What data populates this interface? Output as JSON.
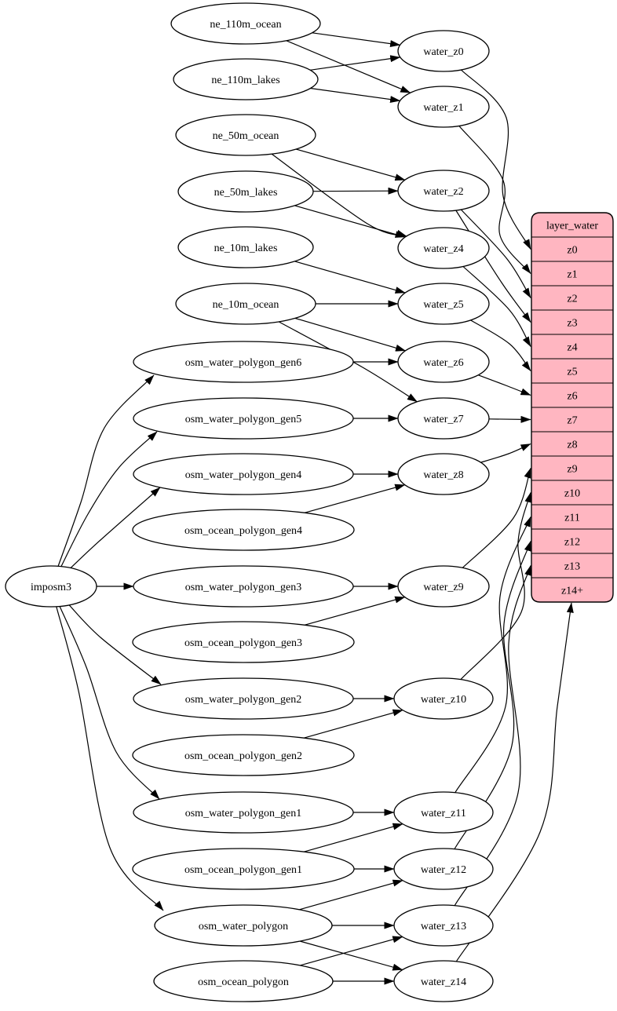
{
  "diagram": {
    "background": "#ffffff",
    "edge_color": "#000000",
    "node_fill": "#ffffff",
    "node_stroke": "#000000"
  },
  "nodes": {
    "imposm3": {
      "label": "imposm3"
    },
    "ne_110m_ocean": {
      "label": "ne_110m_ocean"
    },
    "ne_110m_lakes": {
      "label": "ne_110m_lakes"
    },
    "ne_50m_ocean": {
      "label": "ne_50m_ocean"
    },
    "ne_50m_lakes": {
      "label": "ne_50m_lakes"
    },
    "ne_10m_lakes": {
      "label": "ne_10m_lakes"
    },
    "ne_10m_ocean": {
      "label": "ne_10m_ocean"
    },
    "osm_water_polygon_gen6": {
      "label": "osm_water_polygon_gen6"
    },
    "osm_water_polygon_gen5": {
      "label": "osm_water_polygon_gen5"
    },
    "osm_water_polygon_gen4": {
      "label": "osm_water_polygon_gen4"
    },
    "osm_ocean_polygon_gen4": {
      "label": "osm_ocean_polygon_gen4"
    },
    "osm_water_polygon_gen3": {
      "label": "osm_water_polygon_gen3"
    },
    "osm_ocean_polygon_gen3": {
      "label": "osm_ocean_polygon_gen3"
    },
    "osm_water_polygon_gen2": {
      "label": "osm_water_polygon_gen2"
    },
    "osm_ocean_polygon_gen2": {
      "label": "osm_ocean_polygon_gen2"
    },
    "osm_water_polygon_gen1": {
      "label": "osm_water_polygon_gen1"
    },
    "osm_ocean_polygon_gen1": {
      "label": "osm_ocean_polygon_gen1"
    },
    "osm_water_polygon": {
      "label": "osm_water_polygon"
    },
    "osm_ocean_polygon": {
      "label": "osm_ocean_polygon"
    },
    "water_z0": {
      "label": "water_z0"
    },
    "water_z1": {
      "label": "water_z1"
    },
    "water_z2": {
      "label": "water_z2"
    },
    "water_z4": {
      "label": "water_z4"
    },
    "water_z5": {
      "label": "water_z5"
    },
    "water_z6": {
      "label": "water_z6"
    },
    "water_z7": {
      "label": "water_z7"
    },
    "water_z8": {
      "label": "water_z8"
    },
    "water_z9": {
      "label": "water_z9"
    },
    "water_z10": {
      "label": "water_z10"
    },
    "water_z11": {
      "label": "water_z11"
    },
    "water_z12": {
      "label": "water_z12"
    },
    "water_z13": {
      "label": "water_z13"
    },
    "water_z14": {
      "label": "water_z14"
    }
  },
  "table": {
    "title": "layer_water",
    "rows": [
      "z0",
      "z1",
      "z2",
      "z3",
      "z4",
      "z5",
      "z6",
      "z7",
      "z8",
      "z9",
      "z10",
      "z11",
      "z12",
      "z13",
      "z14+"
    ],
    "fill": "#ffb6c1",
    "stroke": "#000000"
  },
  "edges": [
    {
      "from": "ne_110m_ocean",
      "to": "water_z0"
    },
    {
      "from": "ne_110m_ocean",
      "to": "water_z1"
    },
    {
      "from": "ne_110m_lakes",
      "to": "water_z0"
    },
    {
      "from": "ne_110m_lakes",
      "to": "water_z1"
    },
    {
      "from": "ne_50m_ocean",
      "to": "water_z2"
    },
    {
      "from": "ne_50m_ocean",
      "to": "water_z4"
    },
    {
      "from": "ne_50m_lakes",
      "to": "water_z2"
    },
    {
      "from": "ne_50m_lakes",
      "to": "water_z4"
    },
    {
      "from": "ne_10m_lakes",
      "to": "water_z5"
    },
    {
      "from": "ne_10m_ocean",
      "to": "water_z5"
    },
    {
      "from": "ne_10m_ocean",
      "to": "water_z6"
    },
    {
      "from": "ne_10m_ocean",
      "to": "water_z7"
    },
    {
      "from": "osm_water_polygon_gen6",
      "to": "water_z6"
    },
    {
      "from": "osm_water_polygon_gen5",
      "to": "water_z7"
    },
    {
      "from": "osm_water_polygon_gen4",
      "to": "water_z8"
    },
    {
      "from": "osm_ocean_polygon_gen4",
      "to": "water_z8"
    },
    {
      "from": "osm_water_polygon_gen3",
      "to": "water_z9"
    },
    {
      "from": "osm_ocean_polygon_gen3",
      "to": "water_z9"
    },
    {
      "from": "osm_water_polygon_gen2",
      "to": "water_z10"
    },
    {
      "from": "osm_ocean_polygon_gen2",
      "to": "water_z10"
    },
    {
      "from": "osm_water_polygon_gen1",
      "to": "water_z11"
    },
    {
      "from": "osm_ocean_polygon_gen1",
      "to": "water_z11"
    },
    {
      "from": "osm_ocean_polygon_gen1",
      "to": "water_z12"
    },
    {
      "from": "osm_water_polygon",
      "to": "water_z12"
    },
    {
      "from": "osm_water_polygon",
      "to": "water_z13"
    },
    {
      "from": "osm_water_polygon",
      "to": "water_z14"
    },
    {
      "from": "osm_ocean_polygon",
      "to": "water_z13"
    },
    {
      "from": "osm_ocean_polygon",
      "to": "water_z14"
    },
    {
      "from": "imposm3",
      "to": "osm_water_polygon_gen6"
    },
    {
      "from": "imposm3",
      "to": "osm_water_polygon_gen5"
    },
    {
      "from": "imposm3",
      "to": "osm_water_polygon_gen4"
    },
    {
      "from": "imposm3",
      "to": "osm_water_polygon_gen3"
    },
    {
      "from": "imposm3",
      "to": "osm_water_polygon_gen2"
    },
    {
      "from": "imposm3",
      "to": "osm_water_polygon_gen1"
    },
    {
      "from": "imposm3",
      "to": "osm_water_polygon"
    },
    {
      "from": "water_z0",
      "to": "row_z0"
    },
    {
      "from": "water_z1",
      "to": "row_z1"
    },
    {
      "from": "water_z2",
      "to": "row_z2"
    },
    {
      "from": "water_z2",
      "to": "row_z3"
    },
    {
      "from": "water_z4",
      "to": "row_z4"
    },
    {
      "from": "water_z5",
      "to": "row_z5"
    },
    {
      "from": "water_z6",
      "to": "row_z6"
    },
    {
      "from": "water_z7",
      "to": "row_z7"
    },
    {
      "from": "water_z8",
      "to": "row_z8"
    },
    {
      "from": "water_z9",
      "to": "row_z9"
    },
    {
      "from": "water_z10",
      "to": "row_z10"
    },
    {
      "from": "water_z11",
      "to": "row_z11"
    },
    {
      "from": "water_z12",
      "to": "row_z12"
    },
    {
      "from": "water_z13",
      "to": "row_z13"
    },
    {
      "from": "water_z14",
      "to": "row_z14+"
    }
  ]
}
